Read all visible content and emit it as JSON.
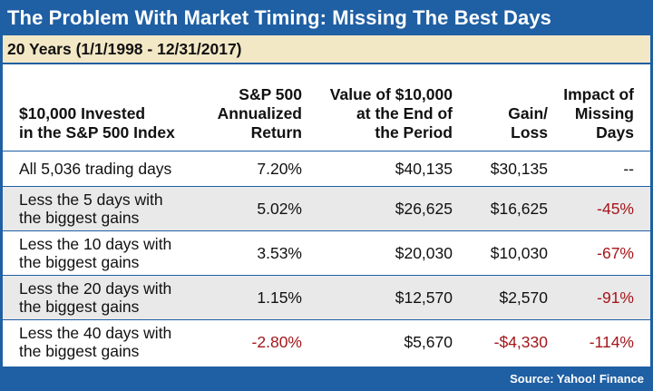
{
  "chart_data": {
    "type": "table",
    "title": "The Problem With Market Timing: Missing The Best Days",
    "subtitle": "20 Years (1/1/1998 - 12/31/2017)",
    "columns": [
      {
        "lines": [
          "$10,000 Invested",
          "in the S&P 500 Index"
        ]
      },
      {
        "lines": [
          "S&P 500",
          "Annualized",
          "Return"
        ]
      },
      {
        "lines": [
          "Value of $10,000",
          "at the End of",
          "the Period"
        ]
      },
      {
        "lines": [
          "Gain/",
          "Loss"
        ]
      },
      {
        "lines": [
          "Impact of",
          "Missing",
          "Days"
        ]
      }
    ],
    "rows": [
      {
        "label": [
          "All 5,036 trading days"
        ],
        "return": "7.20%",
        "value": "$40,135",
        "gain_loss": "$30,135",
        "impact": "--"
      },
      {
        "label": [
          "Less the 5 days with",
          "the biggest gains"
        ],
        "return": "5.02%",
        "value": "$26,625",
        "gain_loss": "$16,625",
        "impact": "-45%"
      },
      {
        "label": [
          "Less the 10 days with",
          "the biggest gains"
        ],
        "return": "3.53%",
        "value": "$20,030",
        "gain_loss": "$10,030",
        "impact": "-67%"
      },
      {
        "label": [
          "Less the 20 days with",
          "the biggest gains"
        ],
        "return": "1.15%",
        "value": "$12,570",
        "gain_loss": "$2,570",
        "impact": "-91%"
      },
      {
        "label": [
          "Less the 40 days with",
          "the biggest gains"
        ],
        "return": "-2.80%",
        "value": "$5,670",
        "gain_loss": "-$4,330",
        "impact": "-114%"
      }
    ],
    "source": "Source: Yahoo! Finance"
  },
  "colors": {
    "frame_blue": "#1f5fa3",
    "subtitle_bg": "#f3e8c6",
    "row_shade": "#e9e9ea",
    "negative_red": "#a4161a"
  }
}
